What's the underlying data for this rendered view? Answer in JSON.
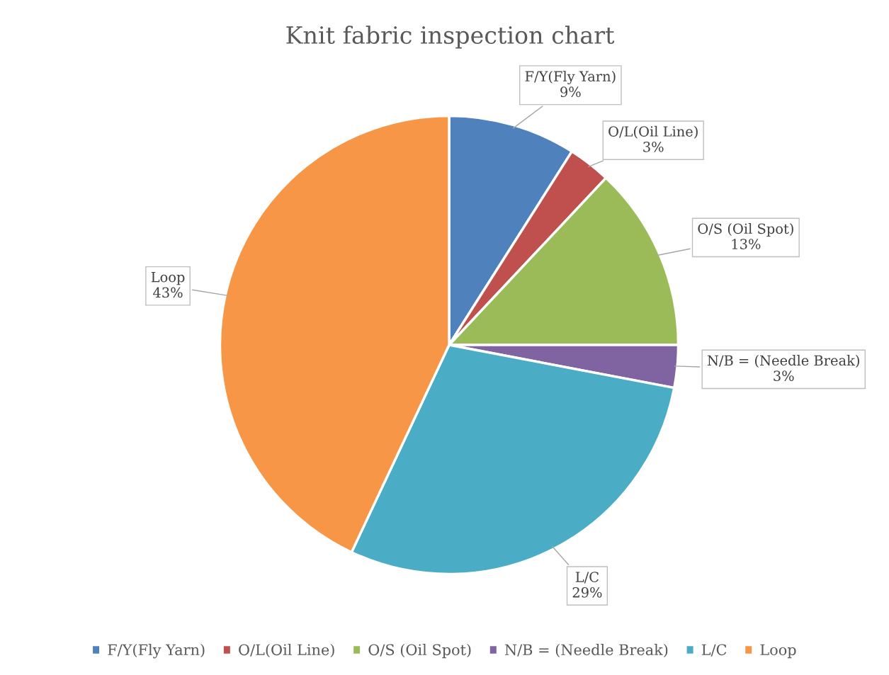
{
  "chart_data": {
    "type": "pie",
    "title": "Knit fabric inspection chart",
    "categories": [
      "F/Y(Fly Yarn)",
      "O/L(Oil Line)",
      "O/S (Oil Spot)",
      "N/B = (Needle Break)",
      "L/C",
      "Loop"
    ],
    "values": [
      9,
      3,
      13,
      3,
      29,
      43
    ],
    "colors": [
      "#4f81bd",
      "#c0504d",
      "#9bbb59",
      "#8064a2",
      "#4bacc6",
      "#f79646"
    ],
    "value_labels": [
      "9%",
      "3%",
      "13%",
      "3%",
      "29%",
      "43%"
    ],
    "legend": "bottom"
  }
}
